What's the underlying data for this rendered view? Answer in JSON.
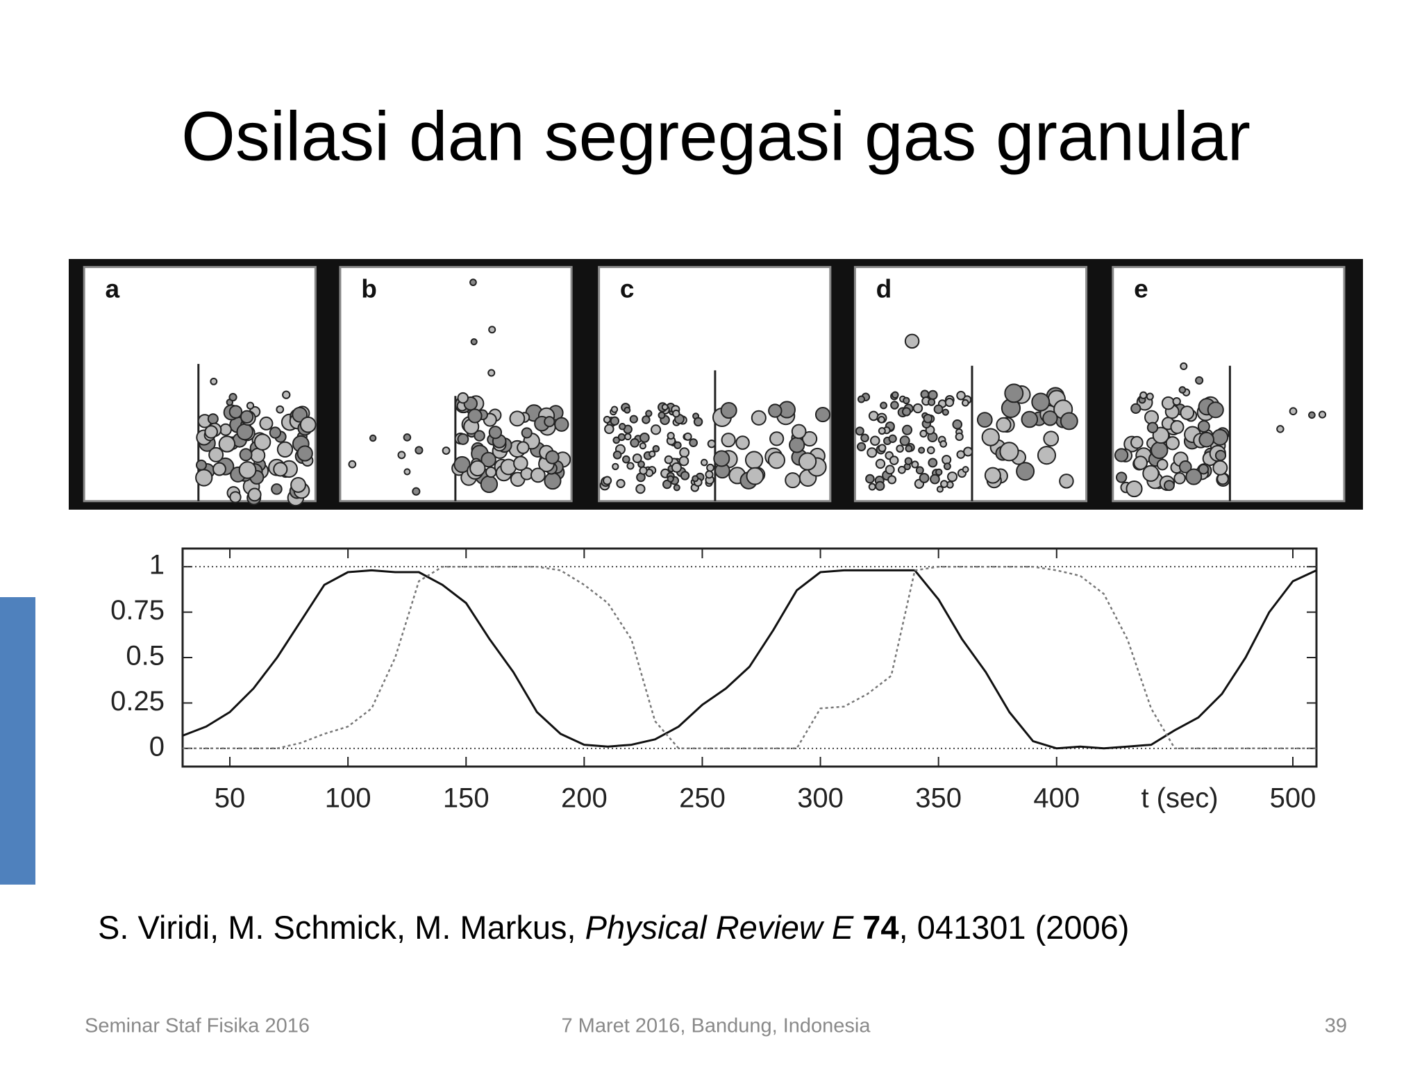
{
  "slide": {
    "title": "Osilasi dan segregasi gas granular",
    "panels": [
      "a",
      "b",
      "c",
      "d",
      "e"
    ],
    "citation": {
      "authors": "S. Viridi, M. Schmick, M. Markus,",
      "journal": "Physical Review E",
      "volume": "74",
      "rest": ", 041301 (2006)"
    },
    "footer": {
      "left": "Seminar Staf Fisika 2016",
      "center": "7 Maret 2016, Bandung, Indonesia",
      "page": "39"
    }
  },
  "chart_data": {
    "type": "line",
    "x_label": "t (sec)",
    "xlim": [
      30,
      510
    ],
    "ylim": [
      -0.1,
      1.1
    ],
    "xticks": [
      50,
      100,
      150,
      200,
      250,
      300,
      350,
      400,
      500
    ],
    "yticks": [
      0,
      0.25,
      0.5,
      0.75,
      1
    ],
    "x": [
      30,
      40,
      50,
      60,
      70,
      80,
      90,
      100,
      110,
      120,
      130,
      140,
      150,
      160,
      170,
      180,
      190,
      200,
      210,
      220,
      230,
      240,
      250,
      260,
      270,
      280,
      290,
      300,
      310,
      320,
      330,
      340,
      350,
      360,
      370,
      380,
      390,
      400,
      410,
      420,
      430,
      440,
      450,
      460,
      470,
      480,
      490,
      500,
      510
    ],
    "series": [
      {
        "color": "#111111",
        "dash": false,
        "values": [
          0.07,
          0.12,
          0.2,
          0.33,
          0.5,
          0.7,
          0.9,
          0.97,
          0.98,
          0.97,
          0.97,
          0.9,
          0.8,
          0.6,
          0.42,
          0.2,
          0.08,
          0.02,
          0.01,
          0.02,
          0.05,
          0.12,
          0.24,
          0.33,
          0.45,
          0.65,
          0.87,
          0.97,
          0.98,
          0.98,
          0.98,
          0.98,
          0.82,
          0.6,
          0.42,
          0.2,
          0.04,
          0.0,
          0.01,
          0.0,
          0.01,
          0.02,
          0.1,
          0.17,
          0.3,
          0.5,
          0.75,
          0.92,
          0.98
        ]
      },
      {
        "color": "#777777",
        "dash": true,
        "values": [
          0,
          0,
          0,
          0,
          0,
          0.03,
          0.08,
          0.12,
          0.22,
          0.5,
          0.92,
          1,
          1,
          1,
          1,
          1,
          0.98,
          0.9,
          0.8,
          0.6,
          0.15,
          0,
          0,
          0,
          0,
          0,
          0,
          0.22,
          0.23,
          0.3,
          0.4,
          0.98,
          1,
          1,
          1,
          1,
          1,
          0.98,
          0.95,
          0.85,
          0.6,
          0.22,
          0,
          0,
          0,
          0,
          0,
          0,
          0
        ]
      }
    ]
  }
}
